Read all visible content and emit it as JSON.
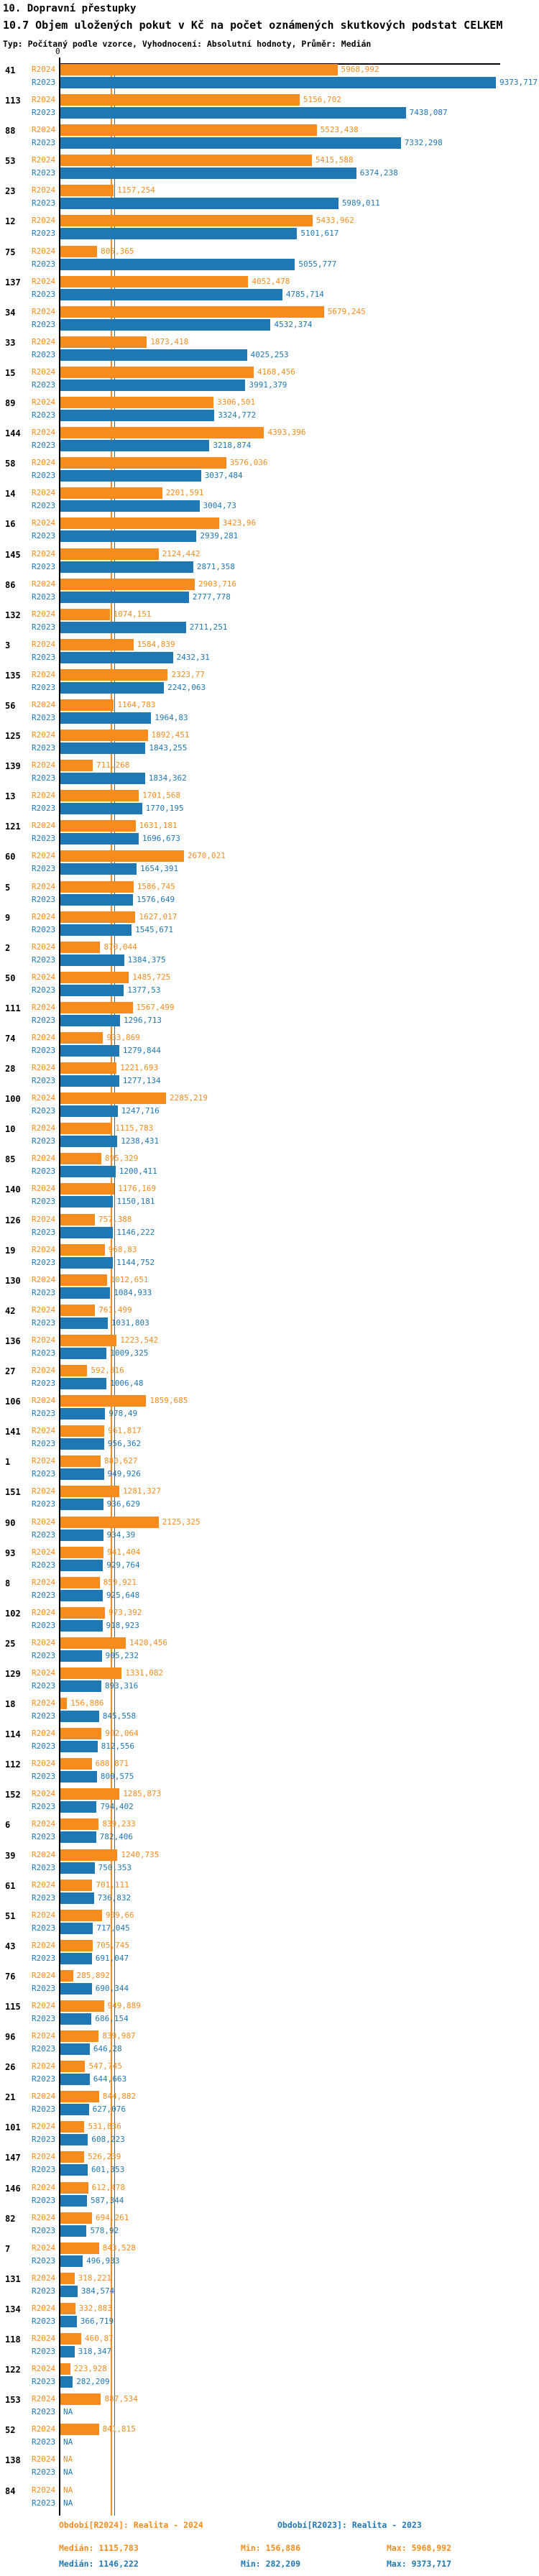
{
  "header": {
    "title": "10. Dopravní přestupky",
    "subtitle": "10.7 Objem uložených pokut v Kč na počet oznámených skutkových podstat CELKEM",
    "meta": "Typ: Počítaný podle vzorce, Vyhodnocení: Absolutní hodnoty, Průměr: Medián"
  },
  "chart_data": {
    "type": "bar",
    "orientation": "horizontal",
    "series_labels": [
      "R2024",
      "R2023"
    ],
    "colors": {
      "R2024": "#F68C1E",
      "R2023": "#1F77B4"
    },
    "axis": {
      "zero_label": "0",
      "x_max": 9373.717
    },
    "medians": {
      "R2024": 1115.783,
      "R2023": 1146.222
    },
    "na_text": "NA",
    "groups": [
      {
        "label": "41",
        "r2024": "5968,992",
        "r2023": "9373,717"
      },
      {
        "label": "113",
        "r2024": "5156,702",
        "r2023": "7438,087"
      },
      {
        "label": "88",
        "r2024": "5523,438",
        "r2023": "7332,298"
      },
      {
        "label": "53",
        "r2024": "5415,588",
        "r2023": "6374,238"
      },
      {
        "label": "23",
        "r2024": "1157,254",
        "r2023": "5989,011"
      },
      {
        "label": "12",
        "r2024": "5433,962",
        "r2023": "5101,617"
      },
      {
        "label": "75",
        "r2024": "805,365",
        "r2023": "5055,777"
      },
      {
        "label": "137",
        "r2024": "4052,478",
        "r2023": "4785,714"
      },
      {
        "label": "34",
        "r2024": "5679,245",
        "r2023": "4532,374"
      },
      {
        "label": "33",
        "r2024": "1873,418",
        "r2023": "4025,253"
      },
      {
        "label": "15",
        "r2024": "4168,456",
        "r2023": "3991,379"
      },
      {
        "label": "89",
        "r2024": "3306,501",
        "r2023": "3324,772"
      },
      {
        "label": "144",
        "r2024": "4393,396",
        "r2023": "3218,874"
      },
      {
        "label": "58",
        "r2024": "3576,036",
        "r2023": "3037,484"
      },
      {
        "label": "14",
        "r2024": "2201,591",
        "r2023": "3004,73"
      },
      {
        "label": "16",
        "r2024": "3423,96",
        "r2023": "2939,281"
      },
      {
        "label": "145",
        "r2024": "2124,442",
        "r2023": "2871,358"
      },
      {
        "label": "86",
        "r2024": "2903,716",
        "r2023": "2777,778"
      },
      {
        "label": "132",
        "r2024": "1074,151",
        "r2023": "2711,251"
      },
      {
        "label": "3",
        "r2024": "1584,839",
        "r2023": "2432,31"
      },
      {
        "label": "135",
        "r2024": "2323,77",
        "r2023": "2242,063"
      },
      {
        "label": "56",
        "r2024": "1164,783",
        "r2023": "1964,83"
      },
      {
        "label": "125",
        "r2024": "1892,451",
        "r2023": "1843,255"
      },
      {
        "label": "139",
        "r2024": "711,268",
        "r2023": "1834,362"
      },
      {
        "label": "13",
        "r2024": "1701,568",
        "r2023": "1770,195"
      },
      {
        "label": "121",
        "r2024": "1631,181",
        "r2023": "1696,673"
      },
      {
        "label": "60",
        "r2024": "2670,021",
        "r2023": "1654,391"
      },
      {
        "label": "5",
        "r2024": "1586,745",
        "r2023": "1576,649"
      },
      {
        "label": "9",
        "r2024": "1627,017",
        "r2023": "1545,671"
      },
      {
        "label": "2",
        "r2024": "870,044",
        "r2023": "1384,375"
      },
      {
        "label": "50",
        "r2024": "1485,725",
        "r2023": "1377,53"
      },
      {
        "label": "111",
        "r2024": "1567,499",
        "r2023": "1296,713"
      },
      {
        "label": "74",
        "r2024": "933,869",
        "r2023": "1279,844"
      },
      {
        "label": "28",
        "r2024": "1221,693",
        "r2023": "1277,134"
      },
      {
        "label": "100",
        "r2024": "2285,219",
        "r2023": "1247,716"
      },
      {
        "label": "10",
        "r2024": "1115,783",
        "r2023": "1238,431"
      },
      {
        "label": "85",
        "r2024": "895,329",
        "r2023": "1200,411"
      },
      {
        "label": "140",
        "r2024": "1176,169",
        "r2023": "1150,181"
      },
      {
        "label": "126",
        "r2024": "757,388",
        "r2023": "1146,222"
      },
      {
        "label": "19",
        "r2024": "968,83",
        "r2023": "1144,752"
      },
      {
        "label": "130",
        "r2024": "1012,651",
        "r2023": "1084,933"
      },
      {
        "label": "42",
        "r2024": "761,499",
        "r2023": "1031,803"
      },
      {
        "label": "136",
        "r2024": "1223,542",
        "r2023": "1009,325"
      },
      {
        "label": "27",
        "r2024": "592,816",
        "r2023": "1006,48"
      },
      {
        "label": "106",
        "r2024": "1859,685",
        "r2023": "978,49"
      },
      {
        "label": "141",
        "r2024": "961,817",
        "r2023": "956,362"
      },
      {
        "label": "1",
        "r2024": "880,627",
        "r2023": "949,926"
      },
      {
        "label": "151",
        "r2024": "1281,327",
        "r2023": "936,629"
      },
      {
        "label": "90",
        "r2024": "2125,325",
        "r2023": "934,39"
      },
      {
        "label": "93",
        "r2024": "941,404",
        "r2023": "929,764"
      },
      {
        "label": "8",
        "r2024": "859,921",
        "r2023": "925,648"
      },
      {
        "label": "102",
        "r2024": "973,392",
        "r2023": "918,923"
      },
      {
        "label": "25",
        "r2024": "1420,456",
        "r2023": "905,232"
      },
      {
        "label": "129",
        "r2024": "1331,082",
        "r2023": "893,316"
      },
      {
        "label": "18",
        "r2024": "156,886",
        "r2023": "845,558"
      },
      {
        "label": "114",
        "r2024": "902,064",
        "r2023": "812,556"
      },
      {
        "label": "112",
        "r2024": "688,871",
        "r2023": "800,575"
      },
      {
        "label": "152",
        "r2024": "1285,873",
        "r2023": "794,402"
      },
      {
        "label": "6",
        "r2024": "839,233",
        "r2023": "782,406"
      },
      {
        "label": "39",
        "r2024": "1240,735",
        "r2023": "750,353"
      },
      {
        "label": "61",
        "r2024": "701,111",
        "r2023": "736,832"
      },
      {
        "label": "51",
        "r2024": "909,66",
        "r2023": "717,045"
      },
      {
        "label": "43",
        "r2024": "705,745",
        "r2023": "691,047"
      },
      {
        "label": "76",
        "r2024": "285,892",
        "r2023": "690,344"
      },
      {
        "label": "115",
        "r2024": "949,889",
        "r2023": "686,154"
      },
      {
        "label": "96",
        "r2024": "839,987",
        "r2023": "646,28"
      },
      {
        "label": "26",
        "r2024": "547,745",
        "r2023": "644,663"
      },
      {
        "label": "21",
        "r2024": "844,882",
        "r2023": "627,076"
      },
      {
        "label": "101",
        "r2024": "531,836",
        "r2023": "608,223"
      },
      {
        "label": "147",
        "r2024": "526,239",
        "r2023": "601,353"
      },
      {
        "label": "146",
        "r2024": "612,478",
        "r2023": "587,344"
      },
      {
        "label": "82",
        "r2024": "694,261",
        "r2023": "578,92"
      },
      {
        "label": "7",
        "r2024": "843,528",
        "r2023": "496,933"
      },
      {
        "label": "131",
        "r2024": "318,221",
        "r2023": "384,574"
      },
      {
        "label": "134",
        "r2024": "332,883",
        "r2023": "366,719"
      },
      {
        "label": "118",
        "r2024": "460,87",
        "r2023": "318,347"
      },
      {
        "label": "122",
        "r2024": "223,928",
        "r2023": "282,209"
      },
      {
        "label": "153",
        "r2024": "887,534",
        "r2023": "NA"
      },
      {
        "label": "52",
        "r2024": "841,815",
        "r2023": "NA"
      },
      {
        "label": "138",
        "r2024": "NA",
        "r2023": "NA"
      },
      {
        "label": "84",
        "r2024": "NA",
        "r2023": "NA"
      }
    ]
  },
  "footer": {
    "period_r2024": "Období[R2024]: Realita - 2024",
    "period_r2023": "Období[R2023]: Realita - 2023",
    "stats_r2024": {
      "median": "Medián: 1115,783",
      "min": "Min: 156,886",
      "max": "Max: 5968,992"
    },
    "stats_r2023": {
      "median": "Medián: 1146,222",
      "min": "Min: 282,209",
      "max": "Max: 9373,717"
    }
  }
}
